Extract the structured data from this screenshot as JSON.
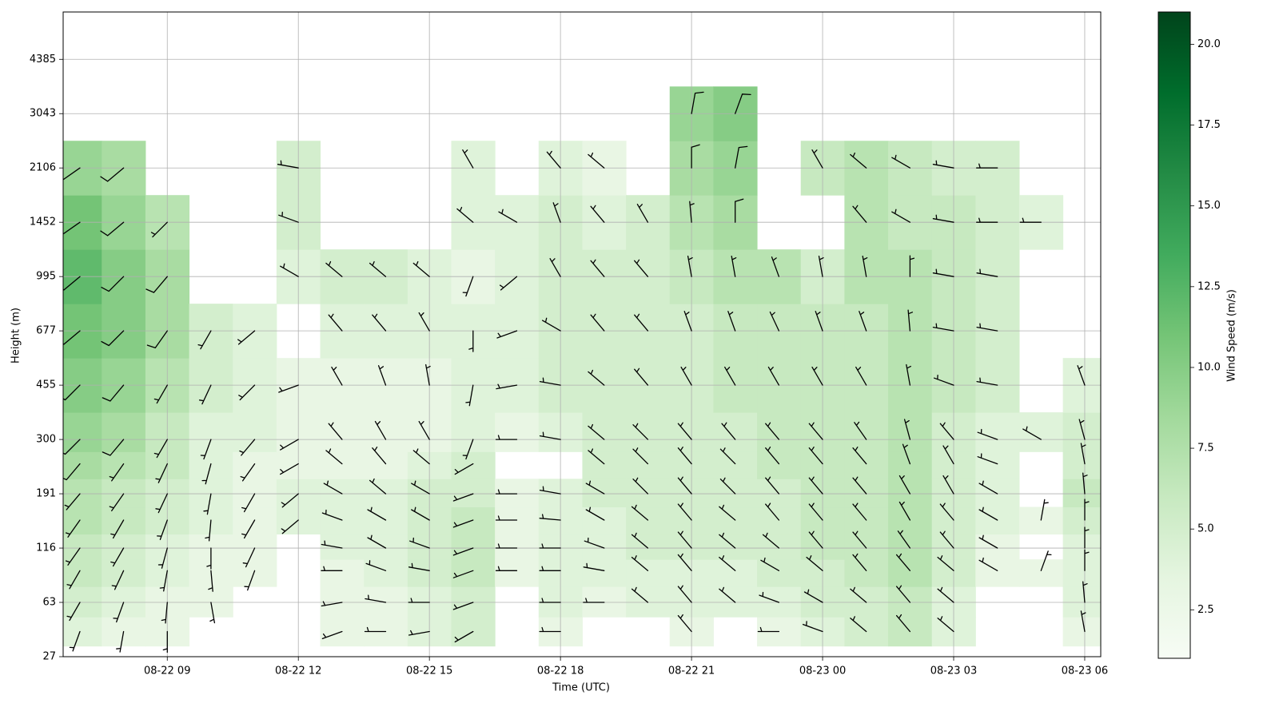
{
  "chart_data": {
    "type": "barbs",
    "xlabel": "Time (UTC)",
    "ylabel": "Height (m)",
    "colorbar_label": "Wind Speed (m/s)",
    "colormap": "Greens",
    "clim": [
      1,
      21
    ],
    "cticks": [
      2.5,
      {
        "value": 5,
        "label": "5.0"
      },
      7.5,
      {
        "value": 10,
        "label": "10.0"
      },
      12.5,
      {
        "value": 15,
        "label": "15.0"
      },
      17.5,
      {
        "value": 20,
        "label": "20.0"
      }
    ],
    "xlim": [
      "08-22 06:37",
      "08-23 06:22"
    ],
    "xticks": [
      "08-22 09",
      "08-22 12",
      "08-22 15",
      "08-22 18",
      "08-22 21",
      "08-23 00",
      "08-23 03",
      "08-23 06"
    ],
    "ylim": [
      27,
      6030
    ],
    "yticks": [
      27,
      63,
      116,
      191,
      300,
      455,
      677,
      995,
      1452,
      2106,
      3043,
      4385
    ],
    "grid": true,
    "barb_color": "#000000",
    "heights": [
      40,
      63,
      90,
      116,
      150,
      191,
      245,
      300,
      455,
      677,
      995,
      1452,
      2106,
      3043
    ],
    "columns": [
      {
        "time": "08-22 07",
        "speed": [
          4,
          5,
          6,
          6,
          7,
          7,
          8,
          9,
          10,
          11,
          12,
          11,
          9,
          null
        ],
        "direction": [
          200,
          210,
          210,
          215,
          215,
          220,
          220,
          225,
          225,
          230,
          230,
          235,
          235,
          null
        ]
      },
      {
        "time": "08-22 08",
        "speed": [
          3,
          4,
          5,
          5,
          6,
          6,
          7,
          8,
          9,
          10,
          10,
          9,
          8,
          null
        ],
        "direction": [
          190,
          200,
          205,
          210,
          210,
          215,
          215,
          220,
          220,
          225,
          225,
          230,
          230,
          null
        ]
      },
      {
        "time": "08-22 09",
        "speed": [
          3,
          3,
          4,
          4,
          5,
          5,
          6,
          6,
          7,
          8,
          8,
          7,
          null,
          null
        ],
        "direction": [
          180,
          185,
          190,
          195,
          200,
          205,
          205,
          210,
          210,
          215,
          220,
          225,
          null,
          null
        ]
      },
      {
        "time": "08-22 10",
        "speed": [
          null,
          3,
          3,
          3,
          4,
          4,
          4,
          4,
          5,
          5,
          null,
          null,
          null,
          null
        ],
        "direction": [
          null,
          170,
          175,
          180,
          185,
          190,
          195,
          200,
          205,
          210,
          null,
          null,
          null,
          null
        ]
      },
      {
        "time": "08-22 11",
        "speed": [
          null,
          null,
          3,
          3,
          3,
          3,
          3,
          4,
          4,
          4,
          null,
          null,
          null,
          null
        ],
        "direction": [
          null,
          null,
          200,
          205,
          210,
          210,
          215,
          220,
          225,
          230,
          null,
          null,
          null,
          null
        ]
      },
      {
        "time": "08-22 12",
        "speed": [
          null,
          null,
          null,
          null,
          4,
          4,
          3,
          3,
          3,
          null,
          4,
          5,
          5,
          null
        ],
        "direction": [
          null,
          null,
          null,
          null,
          230,
          230,
          240,
          240,
          250,
          null,
          300,
          290,
          280,
          null
        ]
      },
      {
        "time": "08-22 13",
        "speed": [
          3,
          3,
          3,
          4,
          4,
          4,
          3,
          3,
          3,
          4,
          5,
          null,
          null,
          null
        ],
        "direction": [
          250,
          260,
          270,
          280,
          290,
          300,
          310,
          320,
          330,
          320,
          310,
          null,
          null,
          null
        ]
      },
      {
        "time": "08-22 14",
        "speed": [
          3,
          3,
          4,
          4,
          4,
          4,
          3,
          3,
          3,
          4,
          5,
          null,
          null,
          null
        ],
        "direction": [
          270,
          280,
          290,
          300,
          300,
          310,
          320,
          330,
          340,
          320,
          310,
          null,
          null,
          null
        ]
      },
      {
        "time": "08-22 15",
        "speed": [
          4,
          4,
          5,
          5,
          5,
          5,
          4,
          3,
          3,
          4,
          4,
          null,
          null,
          null
        ],
        "direction": [
          260,
          270,
          280,
          290,
          300,
          300,
          310,
          330,
          350,
          330,
          310,
          null,
          null,
          null
        ]
      },
      {
        "time": "08-22 16",
        "speed": [
          5,
          5,
          6,
          6,
          6,
          5,
          5,
          4,
          4,
          4,
          3,
          4,
          4,
          null
        ],
        "direction": [
          240,
          250,
          250,
          250,
          250,
          250,
          240,
          200,
          190,
          180,
          200,
          310,
          330,
          null
        ]
      },
      {
        "time": "08-22 17",
        "speed": [
          null,
          null,
          3,
          3,
          3,
          3,
          null,
          3,
          4,
          4,
          4,
          4,
          null,
          null
        ],
        "direction": [
          null,
          null,
          270,
          270,
          270,
          270,
          null,
          270,
          260,
          250,
          230,
          300,
          null,
          null
        ]
      },
      {
        "time": "08-22 18",
        "speed": [
          3,
          4,
          4,
          4,
          4,
          4,
          null,
          4,
          5,
          5,
          5,
          5,
          4,
          null
        ],
        "direction": [
          270,
          270,
          270,
          270,
          275,
          280,
          null,
          280,
          280,
          300,
          330,
          340,
          320,
          null
        ]
      },
      {
        "time": "08-22 19",
        "speed": [
          null,
          3,
          4,
          4,
          4,
          5,
          5,
          5,
          5,
          5,
          5,
          4,
          3,
          null
        ],
        "direction": [
          null,
          270,
          280,
          290,
          300,
          300,
          310,
          310,
          310,
          320,
          320,
          320,
          310,
          null
        ]
      },
      {
        "time": "08-22 20",
        "speed": [
          null,
          4,
          4,
          5,
          5,
          5,
          5,
          5,
          5,
          5,
          5,
          5,
          null,
          null
        ],
        "direction": [
          null,
          310,
          310,
          310,
          310,
          315,
          315,
          315,
          320,
          320,
          320,
          330,
          null,
          null
        ]
      },
      {
        "time": "08-22 21",
        "speed": [
          3,
          4,
          4,
          5,
          5,
          5,
          5,
          5,
          5,
          5,
          6,
          7,
          8,
          9
        ],
        "direction": [
          320,
          320,
          320,
          320,
          320,
          320,
          320,
          320,
          330,
          340,
          350,
          355,
          0,
          10
        ]
      },
      {
        "time": "08-22 22",
        "speed": [
          null,
          4,
          4,
          5,
          5,
          5,
          5,
          5,
          6,
          6,
          7,
          8,
          9,
          10
        ],
        "direction": [
          null,
          310,
          310,
          310,
          310,
          315,
          315,
          320,
          330,
          340,
          350,
          0,
          10,
          20
        ]
      },
      {
        "time": "08-22 23",
        "speed": [
          3,
          4,
          5,
          5,
          5,
          5,
          6,
          6,
          6,
          6,
          7,
          null,
          null,
          null
        ],
        "direction": [
          270,
          290,
          300,
          310,
          320,
          320,
          320,
          320,
          330,
          335,
          340,
          null,
          null,
          null
        ]
      },
      {
        "time": "08-23 00",
        "speed": [
          4,
          5,
          5,
          6,
          6,
          6,
          6,
          6,
          6,
          6,
          5,
          null,
          6,
          null
        ],
        "direction": [
          290,
          300,
          310,
          320,
          320,
          320,
          320,
          320,
          330,
          340,
          350,
          null,
          330,
          null
        ]
      },
      {
        "time": "08-23 01",
        "speed": [
          5,
          5,
          6,
          6,
          6,
          6,
          6,
          6,
          6,
          6,
          7,
          7,
          7,
          null
        ],
        "direction": [
          310,
          310,
          320,
          320,
          320,
          320,
          320,
          325,
          330,
          340,
          350,
          320,
          310,
          null
        ]
      },
      {
        "time": "08-23 02",
        "speed": [
          6,
          6,
          7,
          7,
          7,
          7,
          7,
          7,
          7,
          7,
          7,
          6,
          6,
          null
        ],
        "direction": [
          320,
          320,
          320,
          325,
          330,
          330,
          340,
          345,
          350,
          355,
          0,
          300,
          300,
          null
        ]
      },
      {
        "time": "08-23 03",
        "speed": [
          4,
          4,
          5,
          5,
          5,
          5,
          5,
          5,
          6,
          6,
          6,
          6,
          5,
          null
        ],
        "direction": [
          310,
          310,
          310,
          320,
          320,
          330,
          330,
          320,
          290,
          280,
          280,
          280,
          280,
          null
        ]
      },
      {
        "time": "08-23 04",
        "speed": [
          null,
          null,
          3,
          3,
          4,
          4,
          4,
          4,
          5,
          5,
          5,
          5,
          5,
          null
        ],
        "direction": [
          null,
          null,
          300,
          300,
          300,
          300,
          290,
          290,
          280,
          280,
          280,
          270,
          270,
          null
        ]
      },
      {
        "time": "08-23 05",
        "speed": [
          null,
          null,
          3,
          null,
          3,
          null,
          null,
          4,
          null,
          null,
          null,
          4,
          null,
          null
        ],
        "direction": [
          null,
          null,
          20,
          null,
          10,
          null,
          null,
          300,
          null,
          null,
          null,
          270,
          null,
          null
        ]
      },
      {
        "time": "08-23 06",
        "speed": [
          3,
          4,
          4,
          4,
          5,
          6,
          5,
          5,
          4,
          null,
          null,
          null,
          null,
          null
        ],
        "direction": [
          350,
          355,
          0,
          0,
          0,
          355,
          350,
          345,
          340,
          null,
          null,
          null,
          null,
          null
        ]
      }
    ]
  }
}
